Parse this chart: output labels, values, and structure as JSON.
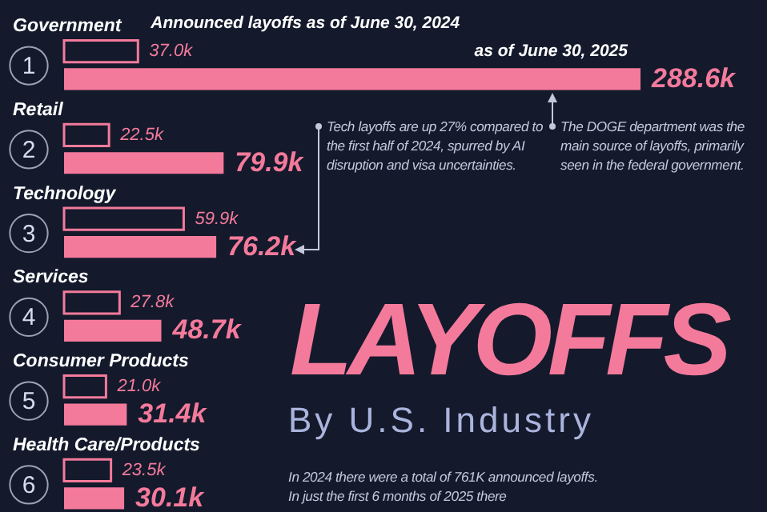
{
  "chart_data": {
    "type": "bar",
    "orientation": "horizontal",
    "title": "LAYOFFS",
    "subtitle": "By U.S. Industry",
    "categories": [
      "Government",
      "Retail",
      "Technology",
      "Services",
      "Consumer Products",
      "Health Care/Products"
    ],
    "series": [
      {
        "name": "Announced layoffs as of June 30, 2024",
        "color": "#f47a9b",
        "values": [
          37.0,
          22.5,
          59.9,
          27.8,
          21.0,
          23.5
        ],
        "value_labels": [
          "37.0k",
          "22.5k",
          "59.9k",
          "27.8k",
          "21.0k",
          "23.5k"
        ]
      },
      {
        "name": "as of June 30, 2025",
        "color": "#f47a9b",
        "values": [
          288.6,
          79.9,
          76.2,
          48.7,
          31.4,
          30.1
        ],
        "value_labels": [
          "288.6k",
          "79.9k",
          "76.2k",
          "48.7k",
          "31.4k",
          "30.1k"
        ]
      }
    ],
    "legend": false,
    "annotations": [
      "Tech layoffs are up 27% compared to the first half of 2024, spurred by AI disruption and visa uncertainties.",
      "The DOGE department was the main source of layoffs, primarily seen in the federal government.",
      "In 2024 there were a total of 761K announced layoffs. In just the first 6 months of 2025 there",
      "1",
      "2",
      "3",
      "4",
      "5",
      "6"
    ]
  }
}
